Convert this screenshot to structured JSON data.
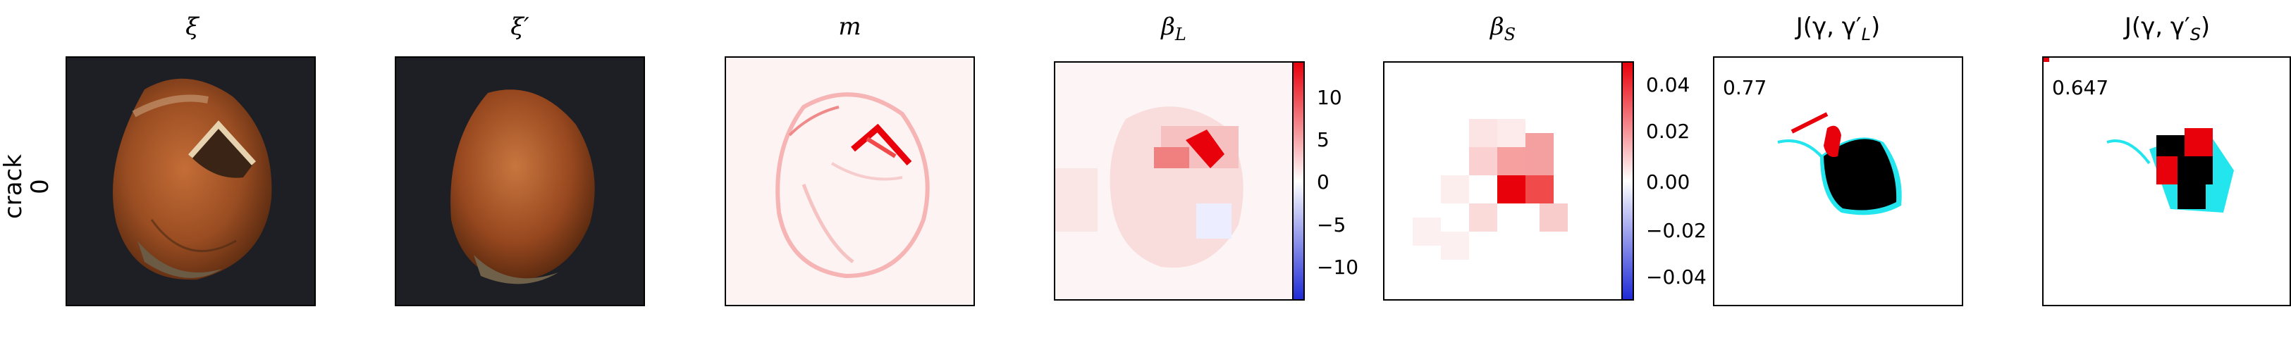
{
  "row": {
    "label_top": "crack",
    "label_bottom": "0"
  },
  "panels": [
    {
      "title": "ξ",
      "sub": ""
    },
    {
      "title": "ξ′",
      "sub": ""
    },
    {
      "title": "m",
      "sub": ""
    },
    {
      "title": "β",
      "sub": "L"
    },
    {
      "title": "β",
      "sub": "S"
    },
    {
      "title": "J(γ, γ′",
      "sub": "L",
      "close": ")",
      "score": "0.77"
    },
    {
      "title": "J(γ, γ′",
      "sub": "S",
      "close": ")",
      "score": "0.647"
    }
  ],
  "colorbar_L": {
    "ticks": [
      "10",
      "5",
      "0",
      "−5",
      "−10"
    ],
    "min": -14,
    "max": 14
  },
  "colorbar_S": {
    "ticks": [
      "0.04",
      "0.02",
      "0.00",
      "−0.02",
      "−0.04"
    ],
    "min": -0.05,
    "max": 0.05
  },
  "colors": {
    "pos": "#e8000b",
    "neg": "#1f2bd6",
    "cyan": "#22e5ee",
    "dark": "#1e1f24"
  }
}
